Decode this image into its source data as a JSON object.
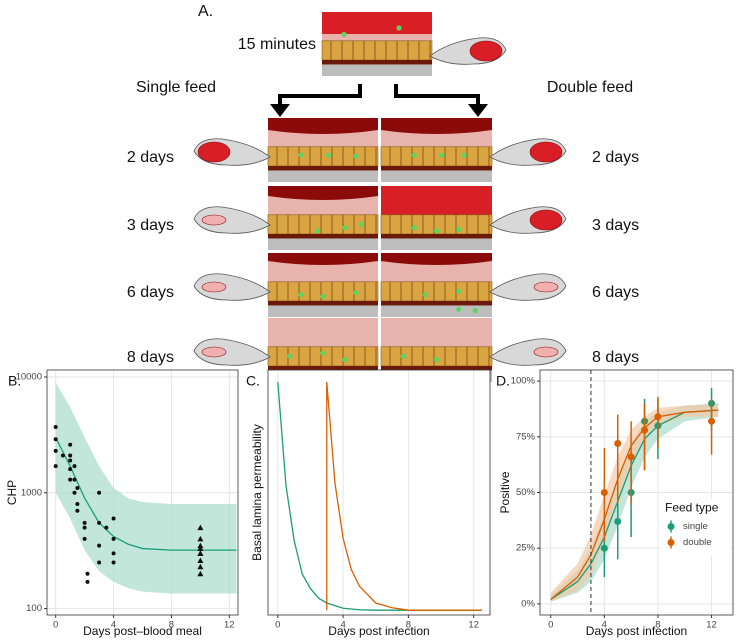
{
  "panel_a": {
    "label": "A.",
    "top": "15 minutes",
    "left_title": "Single feed",
    "right_title": "Double feed",
    "rows": [
      {
        "left": "2 days",
        "right": "2 days"
      },
      {
        "left": "3 days",
        "right": "3 days"
      },
      {
        "left": "6 days",
        "right": "6 days"
      },
      {
        "left": "8 days",
        "right": "8 days"
      }
    ]
  },
  "chart_data": [
    {
      "type": "scatter",
      "panel_label": "B.",
      "x_label": "Days post–blood meal",
      "y_label": "CHP",
      "log_y": true,
      "grid": true,
      "xlim": [
        -0.6,
        12.6
      ],
      "xticks": [
        0,
        4,
        8,
        12
      ],
      "ylim": [
        88,
        11500
      ],
      "yticks": [
        100,
        1000,
        10000
      ],
      "series": [
        {
          "marker": "circle",
          "color": "#111111",
          "x": [
            0,
            0,
            0,
            0,
            0.5,
            1,
            1,
            1,
            1,
            1,
            1.3,
            1.3,
            1.3,
            1.5,
            1.5,
            1.5,
            2,
            2,
            2,
            2.2,
            2.2,
            3,
            3,
            3,
            3,
            3.5,
            4,
            4,
            4,
            4
          ],
          "values": [
            3700,
            2900,
            2300,
            1700,
            2100,
            2600,
            2100,
            1900,
            1600,
            1300,
            1700,
            1300,
            1000,
            1100,
            800,
            700,
            550,
            500,
            400,
            200,
            170,
            1000,
            550,
            350,
            250,
            500,
            600,
            400,
            300,
            250
          ]
        },
        {
          "marker": "triangle",
          "color": "#111111",
          "x": [
            10,
            10,
            10,
            10,
            10,
            10,
            10,
            10,
            10
          ],
          "values": [
            500,
            400,
            330,
            300,
            260,
            230,
            200,
            300,
            350
          ]
        }
      ],
      "fit": {
        "color": "#1b9e77",
        "band_color": "#a8dcc9",
        "x": [
          0,
          1,
          2,
          3,
          4,
          5,
          6,
          8,
          10,
          12.5
        ],
        "values": [
          3000,
          1700,
          900,
          550,
          420,
          360,
          330,
          320,
          320,
          320
        ],
        "upper": [
          9000,
          5500,
          3000,
          1700,
          1100,
          900,
          830,
          800,
          800,
          800
        ],
        "lower": [
          1000,
          600,
          320,
          210,
          170,
          150,
          140,
          135,
          135,
          135
        ]
      }
    },
    {
      "type": "line",
      "panel_label": "C.",
      "x_label": "Days post infection",
      "y_label": "Basal lamina permeability",
      "grid": true,
      "xlim": [
        -0.6,
        13
      ],
      "xticks": [
        0,
        4,
        8,
        12
      ],
      "ylim": [
        0,
        1.02
      ],
      "series": [
        {
          "color": "#1b9e77",
          "x": [
            0,
            0.5,
            1,
            1.5,
            2,
            2.5,
            3,
            4,
            5,
            6,
            8,
            12.5
          ],
          "values": [
            0.97,
            0.54,
            0.31,
            0.17,
            0.11,
            0.07,
            0.05,
            0.028,
            0.022,
            0.02,
            0.02,
            0.02
          ]
        },
        {
          "color": "#d95f02",
          "x": [
            3,
            3,
            3.5,
            4,
            4.5,
            5,
            6,
            7,
            8,
            12.5
          ],
          "values": [
            0.02,
            0.97,
            0.55,
            0.32,
            0.19,
            0.12,
            0.05,
            0.03,
            0.02,
            0.02
          ]
        }
      ]
    },
    {
      "type": "scatter",
      "panel_label": "D.",
      "x_label": "Days post infection",
      "y_label": "Positive",
      "grid": true,
      "xlim": [
        -0.8,
        13.6
      ],
      "xticks": [
        0,
        4,
        8,
        12
      ],
      "ylim": [
        -5,
        105
      ],
      "yticks": [
        {
          "value": 0,
          "label": "0%"
        },
        {
          "value": 25,
          "label": "25%"
        },
        {
          "value": 50,
          "label": "50%"
        },
        {
          "value": 75,
          "label": "75%"
        },
        {
          "value": 100,
          "label": "100%"
        }
      ],
      "vline": 3,
      "legend": "right",
      "legend_title": "Feed type",
      "series": [
        {
          "name": "single",
          "color": "#1b9e77",
          "band_color": "#a8dcc9",
          "x": [
            4,
            5,
            6,
            7,
            8,
            12
          ],
          "values": [
            25,
            37,
            50,
            82,
            80,
            90
          ],
          "lower": [
            12,
            20,
            30,
            60,
            65,
            78
          ],
          "upper": [
            40,
            55,
            68,
            92,
            92,
            97
          ],
          "fit": {
            "x": [
              0,
              2,
              3,
              4,
              5,
              6,
              7,
              8,
              10,
              12.5
            ],
            "values": [
              2,
              10,
              18,
              30,
              46,
              62,
              74,
              80,
              86,
              87
            ],
            "lower": [
              1,
              5,
              10,
              20,
              35,
              52,
              66,
              74,
              82,
              84
            ],
            "upper": [
              4,
              15,
              25,
              40,
              57,
              72,
              82,
              86,
              89,
              90
            ]
          }
        },
        {
          "name": "double",
          "color": "#d95f02",
          "band_color": "#f3c8a5",
          "x": [
            4,
            5,
            6,
            7,
            8,
            12
          ],
          "values": [
            50,
            72,
            66,
            78,
            84,
            82
          ],
          "lower": [
            28,
            45,
            45,
            60,
            70,
            67
          ],
          "upper": [
            70,
            85,
            82,
            90,
            93,
            92
          ],
          "fit": {
            "x": [
              0,
              2,
              3,
              4,
              5,
              6,
              7,
              8,
              10,
              12.5
            ],
            "values": [
              2,
              12,
              22,
              38,
              56,
              71,
              79,
              84,
              86,
              87
            ],
            "lower": [
              1,
              6,
              13,
              28,
              46,
              63,
              74,
              80,
              84,
              84
            ],
            "upper": [
              5,
              18,
              31,
              49,
              66,
              78,
              84,
              88,
              89,
              90
            ]
          }
        }
      ]
    }
  ]
}
